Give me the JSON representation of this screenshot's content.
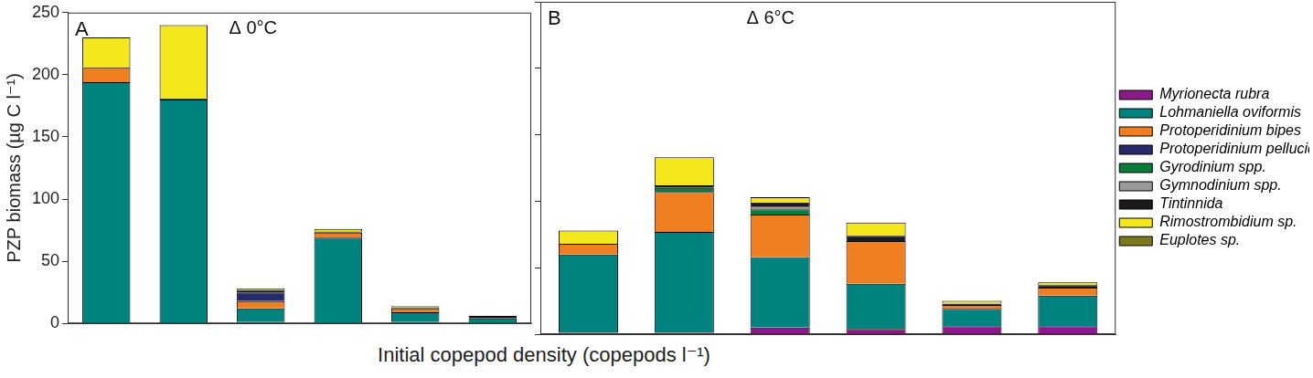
{
  "x_label": "Initial copepod density (copepods l⁻¹)",
  "chart_data": [
    {
      "type": "bar",
      "title": "A",
      "annotation": "Δ 0°C",
      "stacked": true,
      "grid": false,
      "tick_labels": "y",
      "y_label": "PZP biomass (µg C l⁻¹)",
      "categories": [
        null,
        null,
        null,
        null,
        null,
        null
      ],
      "ylim": [
        0,
        250
      ],
      "yticks": [
        0,
        50,
        100,
        150,
        200,
        250
      ],
      "series": [
        {
          "name": "Myrionecta rubra",
          "color": "#8b1a89",
          "values": [
            0,
            0,
            1,
            0,
            1,
            0
          ]
        },
        {
          "name": "Lohmaniella oviformis",
          "color": "#00827f",
          "values": [
            194,
            180,
            11,
            69,
            8,
            4
          ]
        },
        {
          "name": "Protoperidinium bipes",
          "color": "#f07f21",
          "values": [
            12,
            0,
            6,
            4,
            3,
            0
          ]
        },
        {
          "name": "Protoperidinium pellucidum",
          "color": "#262a6b",
          "values": [
            0,
            0,
            7,
            0,
            0,
            0
          ]
        },
        {
          "name": "Gyrodinium spp.",
          "color": "#0a7c3a",
          "values": [
            0,
            0,
            0,
            0,
            0,
            0
          ]
        },
        {
          "name": "Gymnodinium spp.",
          "color": "#9a9a9a",
          "values": [
            0,
            0,
            0,
            0,
            0,
            0
          ]
        },
        {
          "name": "Tintinnida",
          "color": "#1a1a1a",
          "values": [
            0,
            1,
            2,
            1,
            1,
            2
          ]
        },
        {
          "name": "Rimostrombidium sp.",
          "color": "#f4e71c",
          "values": [
            24,
            59,
            1,
            2,
            1,
            0
          ]
        },
        {
          "name": "Euplotes sp.",
          "color": "#7a7a1a",
          "values": [
            0,
            0,
            0,
            0,
            0,
            0
          ]
        }
      ]
    },
    {
      "type": "bar",
      "title": "B",
      "annotation": "Δ 6°C",
      "stacked": true,
      "grid": false,
      "tick_labels": false,
      "legend": "right",
      "categories": [
        null,
        null,
        null,
        null,
        null,
        null
      ],
      "ylim": [
        0,
        250
      ],
      "yticks": [
        0,
        50,
        100,
        150,
        200,
        250
      ],
      "series": [
        {
          "name": "Myrionecta rubra",
          "color": "#8b1a89",
          "values": [
            1,
            1,
            5,
            4,
            6,
            6
          ]
        },
        {
          "name": "Lohmaniella oviformis",
          "color": "#00827f",
          "values": [
            59,
            76,
            53,
            34,
            13,
            23
          ]
        },
        {
          "name": "Protoperidinium bipes",
          "color": "#f07f21",
          "values": [
            8,
            30,
            32,
            32,
            3,
            6
          ]
        },
        {
          "name": "Protoperidinium pellucidum",
          "color": "#262a6b",
          "values": [
            0,
            0,
            0,
            0,
            0,
            0
          ]
        },
        {
          "name": "Gyrodinium spp.",
          "color": "#0a7c3a",
          "values": [
            0,
            3,
            4,
            0,
            0,
            0
          ]
        },
        {
          "name": "Gymnodinium spp.",
          "color": "#9a9a9a",
          "values": [
            0,
            0,
            2,
            0,
            0,
            0
          ]
        },
        {
          "name": "Tintinnida",
          "color": "#1a1a1a",
          "values": [
            0,
            2,
            3,
            4,
            1,
            2
          ]
        },
        {
          "name": "Rimostrombidium sp.",
          "color": "#f4e71c",
          "values": [
            10,
            21,
            4,
            10,
            2,
            2
          ]
        },
        {
          "name": "Euplotes sp.",
          "color": "#7a7a1a",
          "values": [
            0,
            0,
            0,
            0,
            0,
            0
          ]
        }
      ]
    }
  ]
}
